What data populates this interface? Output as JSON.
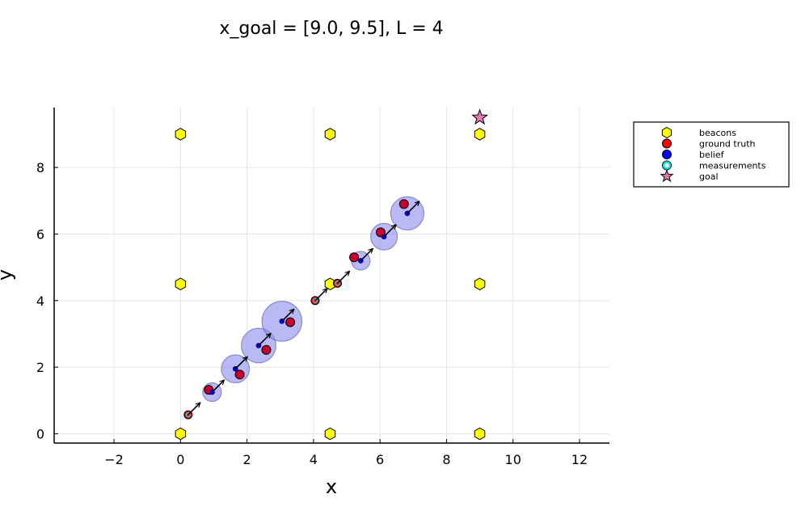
{
  "chart_data": {
    "type": "scatter",
    "title": "x_goal = [9.0, 9.5], L = 4",
    "xlabel": "x",
    "ylabel": "y",
    "xlim": [
      -3.8,
      12.9
    ],
    "ylim": [
      -0.28,
      9.8
    ],
    "xticks": [
      -2,
      0,
      2,
      4,
      6,
      8,
      10,
      12
    ],
    "yticks": [
      0,
      2,
      4,
      6,
      8
    ],
    "xtick_labels": [
      "−2",
      "0",
      "2",
      "4",
      "6",
      "8",
      "10",
      "12"
    ],
    "ytick_labels": [
      "0",
      "2",
      "4",
      "6",
      "8"
    ],
    "grid": true,
    "legend_position": "top-right",
    "colors": {
      "beacon": "#ffff00",
      "ground_truth": "#ff0000",
      "belief": "#0000ff",
      "belief_ellipse": "#8b8bf0",
      "measurement": "#00e0e0",
      "goal": "#e07ab0",
      "grid": "#e6e6e6"
    },
    "legend": [
      {
        "label": "beacons",
        "marker": "hexagon",
        "color": "#ffff00"
      },
      {
        "label": "ground truth",
        "marker": "circle",
        "color": "#ff0000"
      },
      {
        "label": "belief",
        "marker": "circle",
        "color": "#0000ff"
      },
      {
        "label": "measurements",
        "marker": "ring",
        "color": "#00e0e0"
      },
      {
        "label": "goal",
        "marker": "star",
        "color": "#e07ab0"
      }
    ],
    "beacons": [
      {
        "x": 0,
        "y": 0
      },
      {
        "x": 4.5,
        "y": 0
      },
      {
        "x": 9,
        "y": 0
      },
      {
        "x": 0,
        "y": 4.5
      },
      {
        "x": 4.5,
        "y": 4.5
      },
      {
        "x": 9,
        "y": 4.5
      },
      {
        "x": 0,
        "y": 9
      },
      {
        "x": 4.5,
        "y": 9
      },
      {
        "x": 9,
        "y": 9
      }
    ],
    "goal": {
      "x": 9.0,
      "y": 9.5
    },
    "trajectory": [
      {
        "belief_x": 0.23,
        "belief_y": 0.57,
        "belief_radius": 0.12,
        "truth_x": 0.23,
        "truth_y": 0.57,
        "measured": true
      },
      {
        "belief_x": 0.95,
        "belief_y": 1.25,
        "belief_radius": 0.28,
        "truth_x": 0.85,
        "truth_y": 1.32,
        "measured": false
      },
      {
        "belief_x": 1.65,
        "belief_y": 1.95,
        "belief_radius": 0.42,
        "truth_x": 1.78,
        "truth_y": 1.78,
        "measured": false
      },
      {
        "belief_x": 2.35,
        "belief_y": 2.65,
        "belief_radius": 0.52,
        "truth_x": 2.58,
        "truth_y": 2.52,
        "measured": false
      },
      {
        "belief_x": 3.05,
        "belief_y": 3.38,
        "belief_radius": 0.6,
        "truth_x": 3.3,
        "truth_y": 3.35,
        "measured": false
      },
      {
        "belief_x": 4.05,
        "belief_y": 4.0,
        "belief_radius": 0.12,
        "truth_x": 4.05,
        "truth_y": 4.0,
        "measured": true
      },
      {
        "belief_x": 4.72,
        "belief_y": 4.52,
        "belief_radius": 0.12,
        "truth_x": 4.72,
        "truth_y": 4.52,
        "measured": true
      },
      {
        "belief_x": 5.42,
        "belief_y": 5.2,
        "belief_radius": 0.28,
        "truth_x": 5.22,
        "truth_y": 5.3,
        "measured": false
      },
      {
        "belief_x": 6.12,
        "belief_y": 5.92,
        "belief_radius": 0.4,
        "truth_x": 6.02,
        "truth_y": 6.05,
        "measured": false
      },
      {
        "belief_x": 6.82,
        "belief_y": 6.62,
        "belief_radius": 0.5,
        "truth_x": 6.72,
        "truth_y": 6.9,
        "measured": false
      }
    ]
  }
}
